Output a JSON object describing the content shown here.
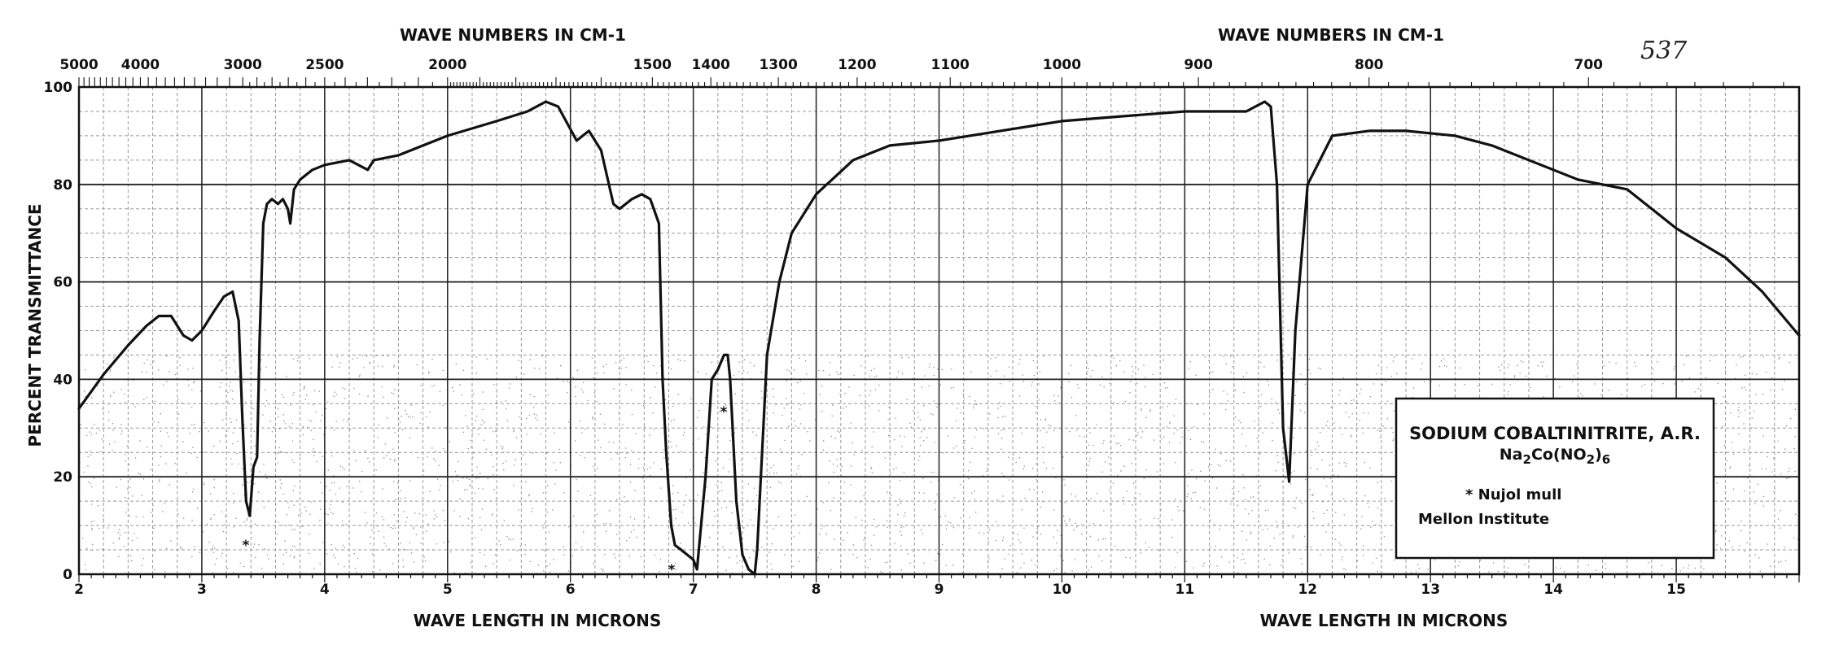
{
  "chart_data": {
    "type": "line",
    "page_number": "537",
    "xlabel": "WAVE LENGTH IN MICRONS",
    "xlabel_repeat": "WAVE LENGTH IN MICRONS",
    "x2label": "WAVE NUMBERS IN CM-1",
    "x2label_repeat": "WAVE NUMBERS IN CM-1",
    "ylabel": "PERCENT TRANSMITTANCE",
    "xlim": [
      2,
      16
    ],
    "ylim": [
      0,
      100
    ],
    "grid": true,
    "legend_position": "right",
    "x_ticks": [
      {
        "value": 2,
        "label": "2"
      },
      {
        "value": 3,
        "label": "3"
      },
      {
        "value": 4,
        "label": "4"
      },
      {
        "value": 5,
        "label": "5"
      },
      {
        "value": 6,
        "label": "6"
      },
      {
        "value": 7,
        "label": "7"
      },
      {
        "value": 8,
        "label": "8"
      },
      {
        "value": 9,
        "label": "9"
      },
      {
        "value": 10,
        "label": "10"
      },
      {
        "value": 11,
        "label": "11"
      },
      {
        "value": 12,
        "label": "12"
      },
      {
        "value": 13,
        "label": "13"
      },
      {
        "value": 14,
        "label": "14"
      },
      {
        "value": 15,
        "label": "15"
      }
    ],
    "y_ticks": [
      {
        "value": 0,
        "label": "0"
      },
      {
        "value": 20,
        "label": "20"
      },
      {
        "value": 40,
        "label": "40"
      },
      {
        "value": 60,
        "label": "60"
      },
      {
        "value": 80,
        "label": "80"
      },
      {
        "value": 100,
        "label": "100"
      }
    ],
    "wavenumber_ticks": [
      {
        "value": 5000,
        "label": "5000"
      },
      {
        "value": 4000,
        "label": "4000"
      },
      {
        "value": 3000,
        "label": "3000"
      },
      {
        "value": 2500,
        "label": "2500"
      },
      {
        "value": 2000,
        "label": "2000"
      },
      {
        "value": 1500,
        "label": "1500"
      },
      {
        "value": 1400,
        "label": "1400"
      },
      {
        "value": 1300,
        "label": "1300"
      },
      {
        "value": 1200,
        "label": "1200"
      },
      {
        "value": 1100,
        "label": "1100"
      },
      {
        "value": 1000,
        "label": "1000"
      },
      {
        "value": 900,
        "label": "900"
      },
      {
        "value": 800,
        "label": "800"
      },
      {
        "value": 700,
        "label": "700"
      }
    ],
    "series": [
      {
        "x": [
          2.0,
          2.2,
          2.4,
          2.55,
          2.65,
          2.75,
          2.85,
          2.92,
          3.0,
          3.1,
          3.18,
          3.25,
          3.3,
          3.33,
          3.36,
          3.39,
          3.42,
          3.45,
          3.47,
          3.5,
          3.53,
          3.57,
          3.62,
          3.66,
          3.7,
          3.72,
          3.75,
          3.8,
          3.9,
          4.0,
          4.2,
          4.35,
          4.4,
          4.6,
          5.0,
          5.4,
          5.65,
          5.8,
          5.9,
          6.05,
          6.15,
          6.25,
          6.35,
          6.4,
          6.5,
          6.58,
          6.65,
          6.72,
          6.75,
          6.78,
          6.82,
          6.85,
          6.9,
          6.95,
          7.0,
          7.03,
          7.1,
          7.15,
          7.2,
          7.25,
          7.28,
          7.3,
          7.35,
          7.4,
          7.45,
          7.5,
          7.52,
          7.6,
          7.7,
          7.8,
          8.0,
          8.3,
          8.6,
          9.0,
          9.5,
          10.0,
          10.5,
          11.0,
          11.5,
          11.65,
          11.7,
          11.75,
          11.8,
          11.85,
          11.9,
          12.0,
          12.2,
          12.5,
          12.8,
          13.2,
          13.5,
          13.9,
          14.2,
          14.6,
          15.0,
          15.4,
          15.7,
          15.9,
          16.0
        ],
        "y": [
          34,
          41,
          47,
          51,
          53,
          53,
          49,
          48,
          50,
          54,
          57,
          58,
          52,
          32,
          15,
          12,
          22,
          24,
          48,
          72,
          76,
          77,
          76,
          77,
          75,
          72,
          79,
          81,
          83,
          84,
          85,
          83,
          85,
          86,
          90,
          93,
          95,
          97,
          96,
          89,
          91,
          87,
          76,
          75,
          77,
          78,
          77,
          72,
          40,
          25,
          10,
          6,
          5,
          4,
          3,
          1,
          20,
          40,
          42,
          45,
          45,
          40,
          15,
          4,
          1,
          0,
          5,
          45,
          60,
          70,
          78,
          85,
          88,
          89,
          91,
          93,
          94,
          95,
          95,
          97,
          96,
          80,
          30,
          19,
          50,
          80,
          90,
          91,
          91,
          90,
          88,
          84,
          81,
          79,
          71,
          65,
          58,
          52,
          49
        ]
      }
    ],
    "annotations": [
      "*",
      "*",
      "*"
    ],
    "legend": {
      "line1": "SODIUM COBALTINITRITE, A.R.",
      "formula": {
        "p1": "Na",
        "s1": "2",
        "p2": "Co(NO",
        "s2": "2",
        "p3": ")",
        "s3": "6"
      },
      "line3": "* Nujol mull",
      "line4": "Mellon Institute"
    },
    "colors": {
      "curve": "#111111",
      "grid_major": "#222222",
      "grid_minor": "#999999",
      "background": "#ffffff"
    }
  }
}
